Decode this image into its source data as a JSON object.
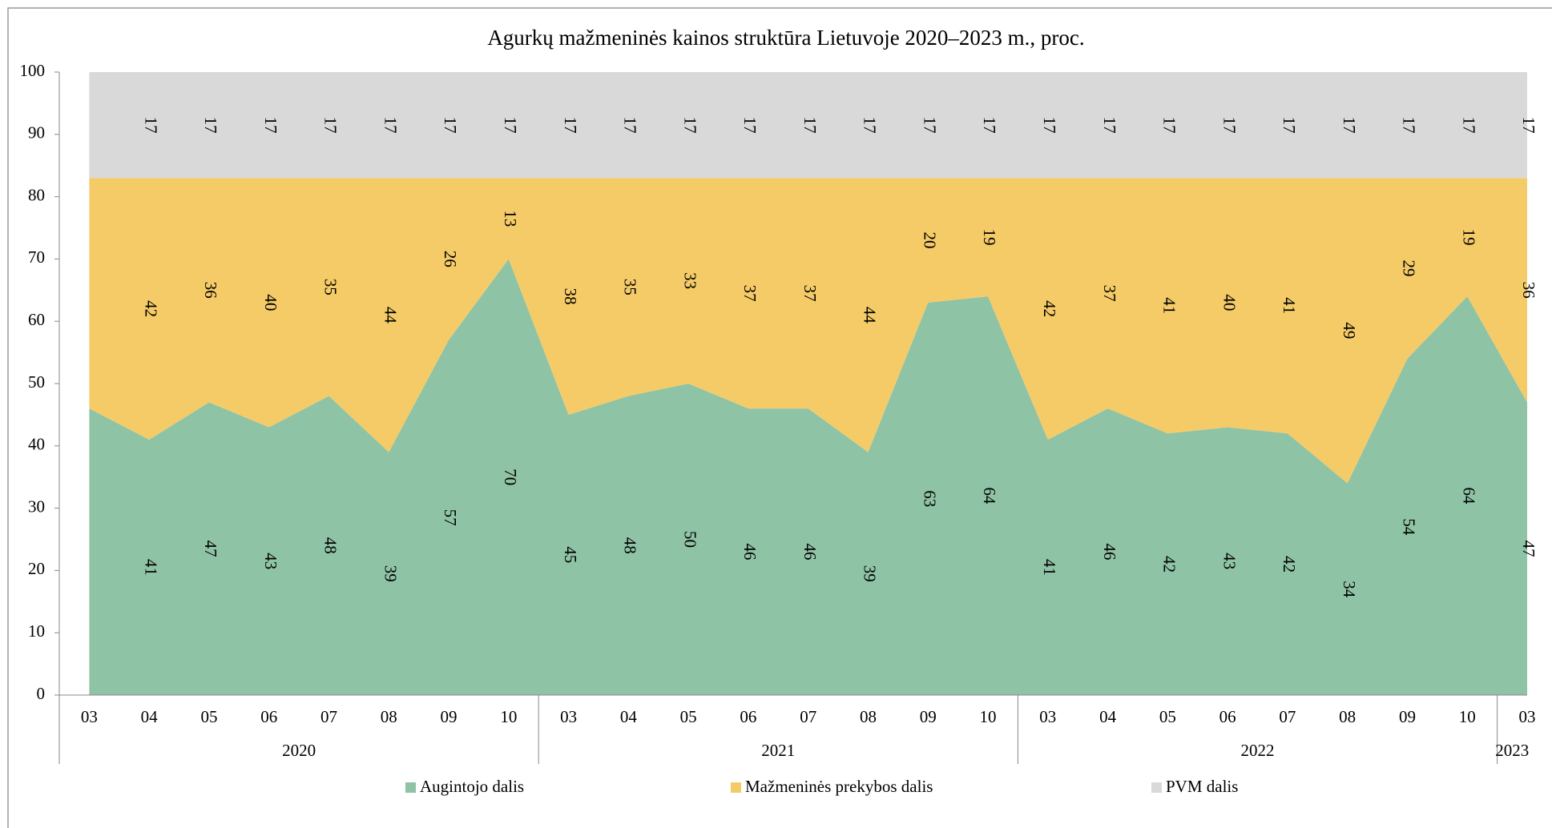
{
  "chart_data": {
    "type": "stacked_area",
    "title": "Agurkų mažmeninės kainos struktūra Lietuvoje 2020–2023 m., proc.",
    "categories": [
      "03",
      "04",
      "05",
      "06",
      "07",
      "08",
      "09",
      "10",
      "03",
      "04",
      "05",
      "06",
      "07",
      "08",
      "09",
      "10",
      "03",
      "04",
      "05",
      "06",
      "07",
      "08",
      "09",
      "10",
      "03"
    ],
    "category_groups": [
      "2020",
      "2020",
      "2020",
      "2020",
      "2020",
      "2020",
      "2020",
      "2020",
      "2021",
      "2021",
      "2021",
      "2021",
      "2021",
      "2021",
      "2021",
      "2021",
      "2022",
      "2022",
      "2022",
      "2022",
      "2022",
      "2022",
      "2022",
      "2022",
      "2023"
    ],
    "series": [
      {
        "name": "Augintojo dalis",
        "color": "#8fc3a6",
        "values": [
          46,
          41,
          47,
          43,
          48,
          39,
          57,
          70,
          45,
          48,
          50,
          46,
          46,
          39,
          63,
          64,
          41,
          46,
          42,
          43,
          42,
          34,
          54,
          64,
          47
        ],
        "value_labels": [
          null,
          "41",
          "47",
          "43",
          "48",
          "39",
          "57",
          "70",
          "45",
          "48",
          "50",
          "46",
          "46",
          "39",
          "63",
          "64",
          "41",
          "46",
          "42",
          "43",
          "42",
          "34",
          "54",
          "64",
          "47"
        ]
      },
      {
        "name": "Mažmeninės prekybos dalis",
        "color": "#f5cb67",
        "values": [
          37,
          42,
          36,
          40,
          35,
          44,
          26,
          13,
          38,
          35,
          33,
          37,
          37,
          44,
          20,
          19,
          42,
          37,
          41,
          40,
          41,
          49,
          29,
          19,
          36
        ],
        "value_labels": [
          null,
          "42",
          "36",
          "40",
          "35",
          "44",
          "26",
          "13",
          "38",
          "35",
          "33",
          "37",
          "37",
          "44",
          "20",
          "19",
          "42",
          "37",
          "41",
          "40",
          "41",
          "49",
          "29",
          "19",
          "36"
        ]
      },
      {
        "name": "PVM dalis",
        "color": "#d9d9d9",
        "values": [
          17,
          17,
          17,
          17,
          17,
          17,
          17,
          17,
          17,
          17,
          17,
          17,
          17,
          17,
          17,
          17,
          17,
          17,
          17,
          17,
          17,
          17,
          17,
          17,
          17
        ],
        "value_labels": [
          null,
          "17",
          "17",
          "17",
          "17",
          "17",
          "17",
          "17",
          "17",
          "17",
          "17",
          "17",
          "17",
          "17",
          "17",
          "17",
          "17",
          "17",
          "17",
          "17",
          "17",
          "17",
          "17",
          "17",
          "17"
        ]
      }
    ],
    "ylim": [
      0,
      100
    ],
    "yticks": [
      0,
      10,
      20,
      30,
      40,
      50,
      60,
      70,
      80,
      90,
      100
    ]
  }
}
